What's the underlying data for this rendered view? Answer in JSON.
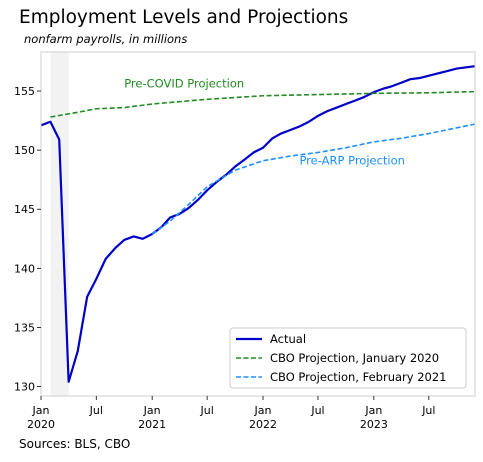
{
  "title": "Employment Levels and Projections",
  "subtitle": "nonfarm payrolls, in millions",
  "source": "Sources: BLS, CBO",
  "chart_data": {
    "type": "line",
    "x_type": "date",
    "xlim": [
      "2020-01-01",
      "2023-11-30"
    ],
    "ylim": [
      129.2,
      158.3
    ],
    "y_ticks": [
      130,
      135,
      140,
      145,
      150,
      155
    ],
    "x_ticks": [
      {
        "date": "2020-01-01",
        "label": [
          "Jan",
          "2020"
        ]
      },
      {
        "date": "2020-07-01",
        "label": [
          "Jul"
        ]
      },
      {
        "date": "2021-01-01",
        "label": [
          "Jan",
          "2021"
        ]
      },
      {
        "date": "2021-07-01",
        "label": [
          "Jul"
        ]
      },
      {
        "date": "2022-01-01",
        "label": [
          "Jan",
          "2022"
        ]
      },
      {
        "date": "2022-07-01",
        "label": [
          "Jul"
        ]
      },
      {
        "date": "2023-01-01",
        "label": [
          "Jan",
          "2023"
        ]
      },
      {
        "date": "2023-07-01",
        "label": [
          "Jul"
        ]
      }
    ],
    "recession_shading": {
      "start": "2020-02-01",
      "end": "2020-04-01",
      "color": "#f2f2f2"
    },
    "series": [
      {
        "name": "Actual",
        "color": "#0000c8",
        "style": "solid",
        "points": [
          [
            "2020-01-01",
            152.1
          ],
          [
            "2020-02-01",
            152.4
          ],
          [
            "2020-03-01",
            150.9
          ],
          [
            "2020-04-01",
            130.4
          ],
          [
            "2020-05-01",
            133.0
          ],
          [
            "2020-06-01",
            137.6
          ],
          [
            "2020-07-01",
            139.1
          ],
          [
            "2020-08-01",
            140.8
          ],
          [
            "2020-09-01",
            141.7
          ],
          [
            "2020-10-01",
            142.4
          ],
          [
            "2020-11-01",
            142.7
          ],
          [
            "2020-12-01",
            142.5
          ],
          [
            "2021-01-01",
            142.9
          ],
          [
            "2021-02-01",
            143.5
          ],
          [
            "2021-03-01",
            144.3
          ],
          [
            "2021-04-01",
            144.6
          ],
          [
            "2021-05-01",
            145.1
          ],
          [
            "2021-06-01",
            145.8
          ],
          [
            "2021-07-01",
            146.6
          ],
          [
            "2021-08-01",
            147.3
          ],
          [
            "2021-09-01",
            147.9
          ],
          [
            "2021-10-01",
            148.6
          ],
          [
            "2021-11-01",
            149.2
          ],
          [
            "2021-12-01",
            149.8
          ],
          [
            "2022-01-01",
            150.2
          ],
          [
            "2022-02-01",
            151.0
          ],
          [
            "2022-03-01",
            151.4
          ],
          [
            "2022-04-01",
            151.7
          ],
          [
            "2022-05-01",
            152.0
          ],
          [
            "2022-06-01",
            152.4
          ],
          [
            "2022-07-01",
            152.9
          ],
          [
            "2022-08-01",
            153.3
          ],
          [
            "2022-09-01",
            153.6
          ],
          [
            "2022-10-01",
            153.9
          ],
          [
            "2022-11-01",
            154.2
          ],
          [
            "2022-12-01",
            154.5
          ],
          [
            "2023-01-01",
            154.9
          ],
          [
            "2023-02-01",
            155.2
          ],
          [
            "2023-03-01",
            155.4
          ],
          [
            "2023-04-01",
            155.7
          ],
          [
            "2023-05-01",
            156.0
          ],
          [
            "2023-06-01",
            156.1
          ],
          [
            "2023-07-01",
            156.3
          ],
          [
            "2023-08-01",
            156.5
          ],
          [
            "2023-09-01",
            156.7
          ],
          [
            "2023-10-01",
            156.9
          ],
          [
            "2023-11-30",
            157.1
          ]
        ]
      },
      {
        "name": "CBO Projection, January 2020",
        "color": "#228b22",
        "style": "dashed",
        "points": [
          [
            "2020-02-01",
            152.8
          ],
          [
            "2020-05-01",
            153.2
          ],
          [
            "2020-07-01",
            153.5
          ],
          [
            "2020-10-01",
            153.6
          ],
          [
            "2021-01-01",
            153.9
          ],
          [
            "2021-07-01",
            154.3
          ],
          [
            "2022-01-01",
            154.6
          ],
          [
            "2022-07-01",
            154.7
          ],
          [
            "2023-01-01",
            154.8
          ],
          [
            "2023-07-01",
            154.85
          ],
          [
            "2023-11-30",
            154.95
          ]
        ]
      },
      {
        "name": "CBO Projection, February 2021",
        "color": "#1e90ff",
        "style": "dashed",
        "points": [
          [
            "2021-01-01",
            142.9
          ],
          [
            "2021-03-01",
            144.0
          ],
          [
            "2021-05-01",
            145.4
          ],
          [
            "2021-07-01",
            146.9
          ],
          [
            "2021-10-01",
            148.3
          ],
          [
            "2022-01-01",
            149.1
          ],
          [
            "2022-04-01",
            149.5
          ],
          [
            "2022-07-01",
            149.8
          ],
          [
            "2022-10-01",
            150.2
          ],
          [
            "2023-01-01",
            150.7
          ],
          [
            "2023-04-01",
            151.0
          ],
          [
            "2023-07-01",
            151.4
          ],
          [
            "2023-11-30",
            152.2
          ]
        ]
      }
    ],
    "annotations": [
      {
        "text": "Pre-COVID Projection",
        "x": "2020-10-01",
        "y": 155.3,
        "color": "#228b22"
      },
      {
        "text": "Pre-ARP Projection",
        "x": "2022-05-01",
        "y": 148.8,
        "color": "#1e90ff"
      }
    ],
    "legend": {
      "position": "lower-right"
    }
  }
}
